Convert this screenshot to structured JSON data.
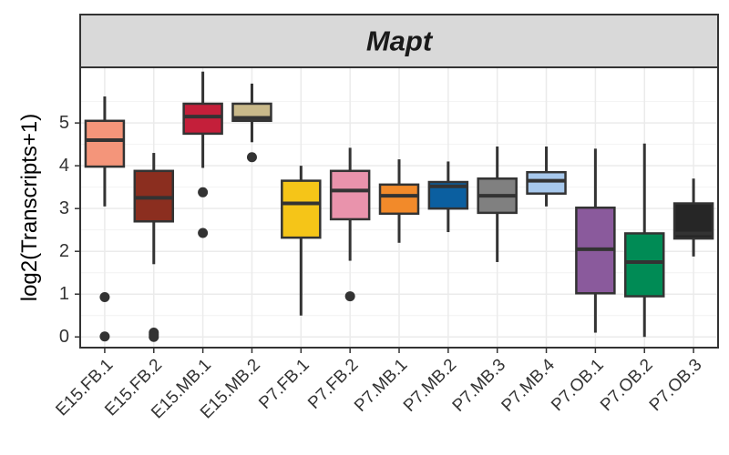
{
  "chart_data": {
    "type": "box",
    "title": "Mapt",
    "xlabel": "",
    "ylabel": "log2(Transcripts+1)",
    "ylim": [
      -0.25,
      6.3
    ],
    "yticks": [
      0,
      1,
      2,
      3,
      4,
      5
    ],
    "grid": true,
    "legend": "none",
    "categories": [
      "E15.FB.1",
      "E15.FB.2",
      "E15.MB.1",
      "E15.MB.2",
      "P7.FB.1",
      "P7.FB.2",
      "P7.MB.1",
      "P7.MB.2",
      "P7.MB.3",
      "P7.MB.4",
      "P7.OB.1",
      "P7.OB.2",
      "P7.OB.3"
    ],
    "boxes": [
      {
        "category": "E15.FB.1",
        "color": "#F4957A",
        "whisker_low": 3.05,
        "q1": 3.98,
        "median": 4.6,
        "q3": 5.05,
        "whisker_high": 5.62,
        "outliers": [
          0.93,
          0.01
        ]
      },
      {
        "category": "E15.FB.2",
        "color": "#8B2E1F",
        "whisker_low": 1.7,
        "q1": 2.7,
        "median": 3.25,
        "q3": 3.88,
        "whisker_high": 4.3,
        "outliers": [
          0.1,
          0.05,
          0.0
        ]
      },
      {
        "category": "E15.MB.1",
        "color": "#C41F3A",
        "whisker_low": 3.95,
        "q1": 4.75,
        "median": 5.15,
        "q3": 5.45,
        "whisker_high": 6.2,
        "outliers": [
          3.38,
          2.43
        ]
      },
      {
        "category": "E15.MB.2",
        "color": "#C9B98A",
        "whisker_low": 4.55,
        "q1": 5.05,
        "median": 5.12,
        "q3": 5.45,
        "whisker_high": 5.92,
        "outliers": [
          4.2
        ]
      },
      {
        "category": "P7.FB.1",
        "color": "#F5C518",
        "whisker_low": 0.5,
        "q1": 2.32,
        "median": 3.12,
        "q3": 3.65,
        "whisker_high": 4.0,
        "outliers": []
      },
      {
        "category": "P7.FB.2",
        "color": "#E993AC",
        "whisker_low": 1.78,
        "q1": 2.75,
        "median": 3.42,
        "q3": 3.88,
        "whisker_high": 4.42,
        "outliers": [
          0.95
        ]
      },
      {
        "category": "P7.MB.1",
        "color": "#F28A2A",
        "whisker_low": 2.2,
        "q1": 2.88,
        "median": 3.3,
        "q3": 3.56,
        "whisker_high": 4.15,
        "outliers": []
      },
      {
        "category": "P7.MB.2",
        "color": "#0B5FA0",
        "whisker_low": 2.45,
        "q1": 3.0,
        "median": 3.52,
        "q3": 3.62,
        "whisker_high": 4.1,
        "outliers": []
      },
      {
        "category": "P7.MB.3",
        "color": "#808080",
        "whisker_low": 1.75,
        "q1": 2.9,
        "median": 3.3,
        "q3": 3.7,
        "whisker_high": 4.45,
        "outliers": []
      },
      {
        "category": "P7.MB.4",
        "color": "#A7C8EC",
        "whisker_low": 3.05,
        "q1": 3.35,
        "median": 3.65,
        "q3": 3.85,
        "whisker_high": 4.45,
        "outliers": []
      },
      {
        "category": "P7.OB.1",
        "color": "#8A5A9C",
        "whisker_low": 0.1,
        "q1": 1.02,
        "median": 2.05,
        "q3": 3.02,
        "whisker_high": 4.4,
        "outliers": []
      },
      {
        "category": "P7.OB.2",
        "color": "#008B55",
        "whisker_low": 0.0,
        "q1": 0.95,
        "median": 1.75,
        "q3": 2.42,
        "whisker_high": 4.52,
        "outliers": []
      },
      {
        "category": "P7.OB.3",
        "color": "#262626",
        "whisker_low": 1.88,
        "q1": 2.3,
        "median": 2.42,
        "q3": 3.12,
        "whisker_high": 3.7,
        "outliers": []
      }
    ]
  }
}
